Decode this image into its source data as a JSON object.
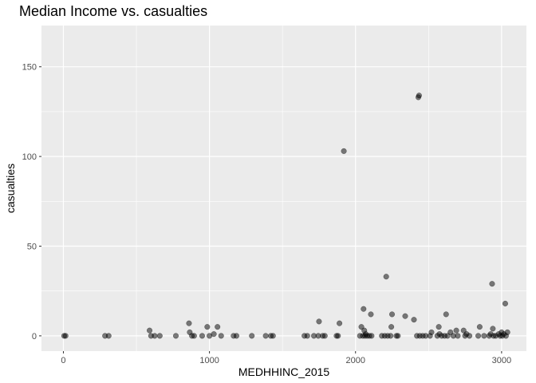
{
  "chart_data": {
    "type": "scatter",
    "title": "Median Income vs. casualties",
    "xlabel": "MEDHHINC_2015",
    "ylabel": "casualties",
    "xlim": [
      -150,
      3170
    ],
    "ylim": [
      -8.5,
      173
    ],
    "x_ticks": [
      0,
      1000,
      2000,
      3000
    ],
    "y_ticks": [
      0,
      50,
      100,
      150
    ],
    "x_tick_labels": [
      "0",
      "1000",
      "2000",
      "3000"
    ],
    "y_tick_labels": [
      "0",
      "50",
      "100",
      "150"
    ],
    "grid": true,
    "legend": "none",
    "colors": {
      "panel": "#ebebeb",
      "grid": "#ffffff",
      "point": "#000000",
      "point_opacity": 0.5
    },
    "points": [
      {
        "x": 5,
        "y": 0
      },
      {
        "x": 15,
        "y": 0
      },
      {
        "x": 285,
        "y": 0
      },
      {
        "x": 310,
        "y": 0
      },
      {
        "x": 590,
        "y": 3
      },
      {
        "x": 600,
        "y": 0
      },
      {
        "x": 625,
        "y": 0
      },
      {
        "x": 660,
        "y": 0
      },
      {
        "x": 770,
        "y": 0
      },
      {
        "x": 860,
        "y": 7
      },
      {
        "x": 865,
        "y": 2
      },
      {
        "x": 880,
        "y": 0
      },
      {
        "x": 895,
        "y": 0
      },
      {
        "x": 950,
        "y": 0
      },
      {
        "x": 985,
        "y": 5
      },
      {
        "x": 1000,
        "y": 0
      },
      {
        "x": 1030,
        "y": 1
      },
      {
        "x": 1055,
        "y": 5
      },
      {
        "x": 1080,
        "y": 0
      },
      {
        "x": 1165,
        "y": 0
      },
      {
        "x": 1185,
        "y": 0
      },
      {
        "x": 1290,
        "y": 0
      },
      {
        "x": 1385,
        "y": 0
      },
      {
        "x": 1420,
        "y": 0
      },
      {
        "x": 1435,
        "y": 0
      },
      {
        "x": 1650,
        "y": 0
      },
      {
        "x": 1670,
        "y": 0
      },
      {
        "x": 1715,
        "y": 0
      },
      {
        "x": 1745,
        "y": 0
      },
      {
        "x": 1750,
        "y": 8
      },
      {
        "x": 1775,
        "y": 0
      },
      {
        "x": 1790,
        "y": 0
      },
      {
        "x": 1870,
        "y": 0
      },
      {
        "x": 1880,
        "y": 0
      },
      {
        "x": 1890,
        "y": 7
      },
      {
        "x": 1920,
        "y": 103
      },
      {
        "x": 2030,
        "y": 0
      },
      {
        "x": 2040,
        "y": 5
      },
      {
        "x": 2050,
        "y": 0
      },
      {
        "x": 2055,
        "y": 15
      },
      {
        "x": 2060,
        "y": 3
      },
      {
        "x": 2065,
        "y": 0
      },
      {
        "x": 2070,
        "y": 1
      },
      {
        "x": 2080,
        "y": 0
      },
      {
        "x": 2095,
        "y": 0
      },
      {
        "x": 2105,
        "y": 12
      },
      {
        "x": 2110,
        "y": 0
      },
      {
        "x": 2180,
        "y": 0
      },
      {
        "x": 2200,
        "y": 0
      },
      {
        "x": 2210,
        "y": 33
      },
      {
        "x": 2220,
        "y": 0
      },
      {
        "x": 2240,
        "y": 0
      },
      {
        "x": 2245,
        "y": 5
      },
      {
        "x": 2250,
        "y": 12
      },
      {
        "x": 2280,
        "y": 0
      },
      {
        "x": 2290,
        "y": 0
      },
      {
        "x": 2340,
        "y": 11
      },
      {
        "x": 2400,
        "y": 9
      },
      {
        "x": 2420,
        "y": 0
      },
      {
        "x": 2430,
        "y": 133
      },
      {
        "x": 2435,
        "y": 134
      },
      {
        "x": 2440,
        "y": 0
      },
      {
        "x": 2460,
        "y": 0
      },
      {
        "x": 2480,
        "y": 0
      },
      {
        "x": 2510,
        "y": 0
      },
      {
        "x": 2520,
        "y": 2
      },
      {
        "x": 2560,
        "y": 0
      },
      {
        "x": 2570,
        "y": 5
      },
      {
        "x": 2575,
        "y": 1
      },
      {
        "x": 2590,
        "y": 0
      },
      {
        "x": 2610,
        "y": 0
      },
      {
        "x": 2620,
        "y": 12
      },
      {
        "x": 2630,
        "y": 0
      },
      {
        "x": 2650,
        "y": 2
      },
      {
        "x": 2670,
        "y": 0
      },
      {
        "x": 2690,
        "y": 3
      },
      {
        "x": 2700,
        "y": 0
      },
      {
        "x": 2740,
        "y": 3
      },
      {
        "x": 2750,
        "y": 0
      },
      {
        "x": 2760,
        "y": 1
      },
      {
        "x": 2780,
        "y": 0
      },
      {
        "x": 2840,
        "y": 0
      },
      {
        "x": 2850,
        "y": 5
      },
      {
        "x": 2880,
        "y": 0
      },
      {
        "x": 2915,
        "y": 0
      },
      {
        "x": 2925,
        "y": 1
      },
      {
        "x": 2935,
        "y": 29
      },
      {
        "x": 2940,
        "y": 4
      },
      {
        "x": 2945,
        "y": 0
      },
      {
        "x": 2960,
        "y": 0
      },
      {
        "x": 2980,
        "y": 1
      },
      {
        "x": 2990,
        "y": 0
      },
      {
        "x": 3000,
        "y": 2
      },
      {
        "x": 3005,
        "y": 0
      },
      {
        "x": 3015,
        "y": 1
      },
      {
        "x": 3025,
        "y": 18
      },
      {
        "x": 3030,
        "y": 0
      },
      {
        "x": 3040,
        "y": 2
      }
    ]
  }
}
